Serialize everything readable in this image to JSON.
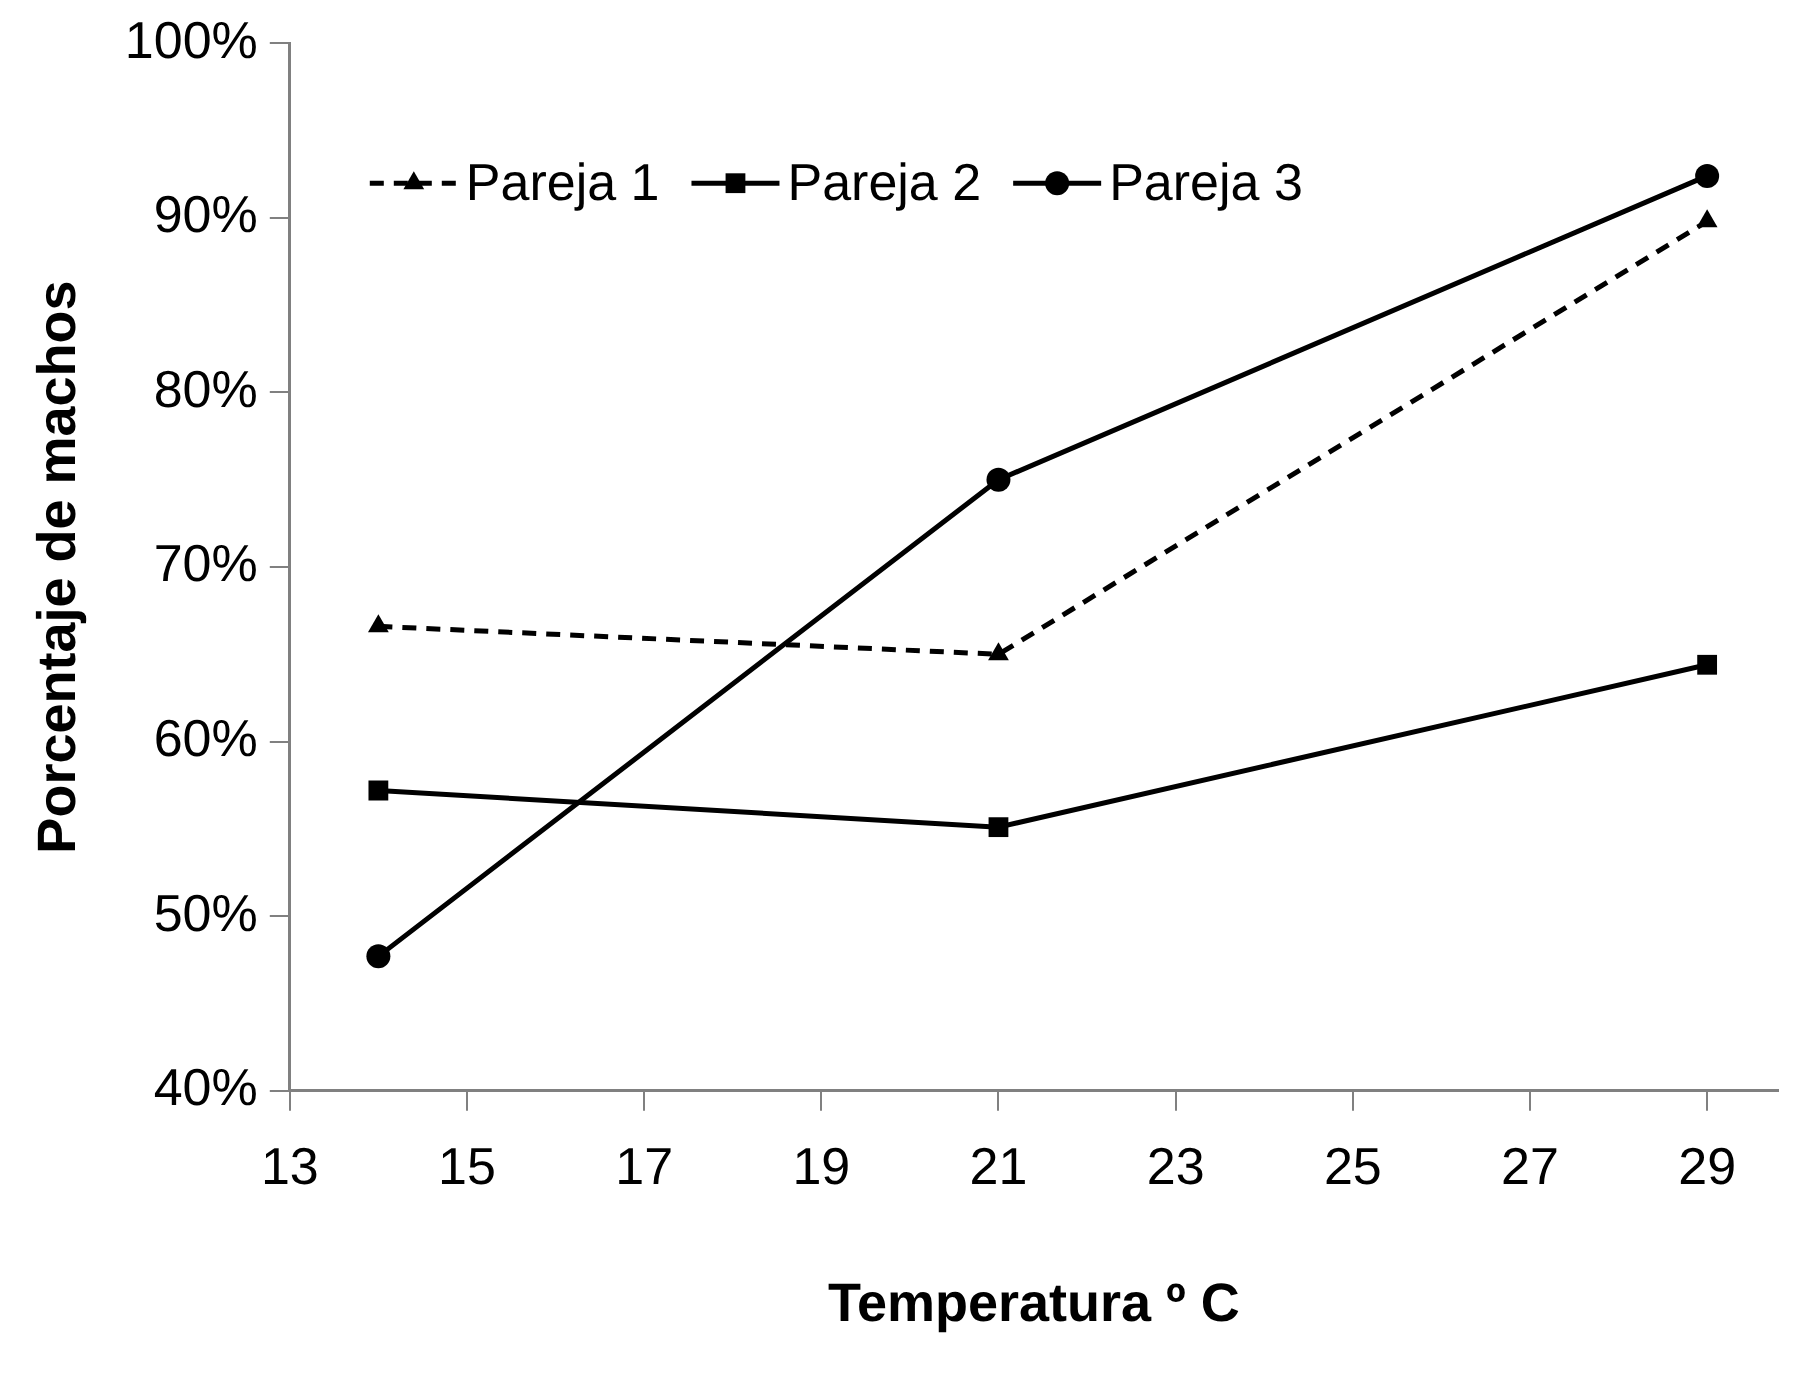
{
  "chart_data": {
    "type": "line",
    "xlabel": "Temperatura º C",
    "ylabel": "Porcentaje de machos",
    "x": [
      14,
      21,
      29
    ],
    "series": [
      {
        "name": "Pareja 1",
        "color": "#000000",
        "marker": "triangle",
        "line_style": "dashed",
        "values": [
          66.6,
          65.0,
          89.8
        ]
      },
      {
        "name": "Pareja 2",
        "color": "#000000",
        "marker": "square",
        "line_style": "solid",
        "values": [
          57.2,
          55.1,
          64.4
        ]
      },
      {
        "name": "Pareja 3",
        "color": "#000000",
        "marker": "circle",
        "line_style": "solid",
        "values": [
          47.7,
          75.0,
          92.4
        ]
      }
    ],
    "xlim": [
      13,
      29.8
    ],
    "xticks": [
      13,
      15,
      17,
      19,
      21,
      23,
      25,
      27,
      29
    ],
    "ylim": [
      40,
      100
    ],
    "yticks": [
      {
        "value": 40,
        "label": "40%"
      },
      {
        "value": 50,
        "label": "50%"
      },
      {
        "value": 60,
        "label": "60%"
      },
      {
        "value": 70,
        "label": "70%"
      },
      {
        "value": 80,
        "label": "80%"
      },
      {
        "value": 90,
        "label": "90%"
      },
      {
        "value": 100,
        "label": "100%"
      }
    ],
    "grid": false,
    "legend": "top left"
  }
}
